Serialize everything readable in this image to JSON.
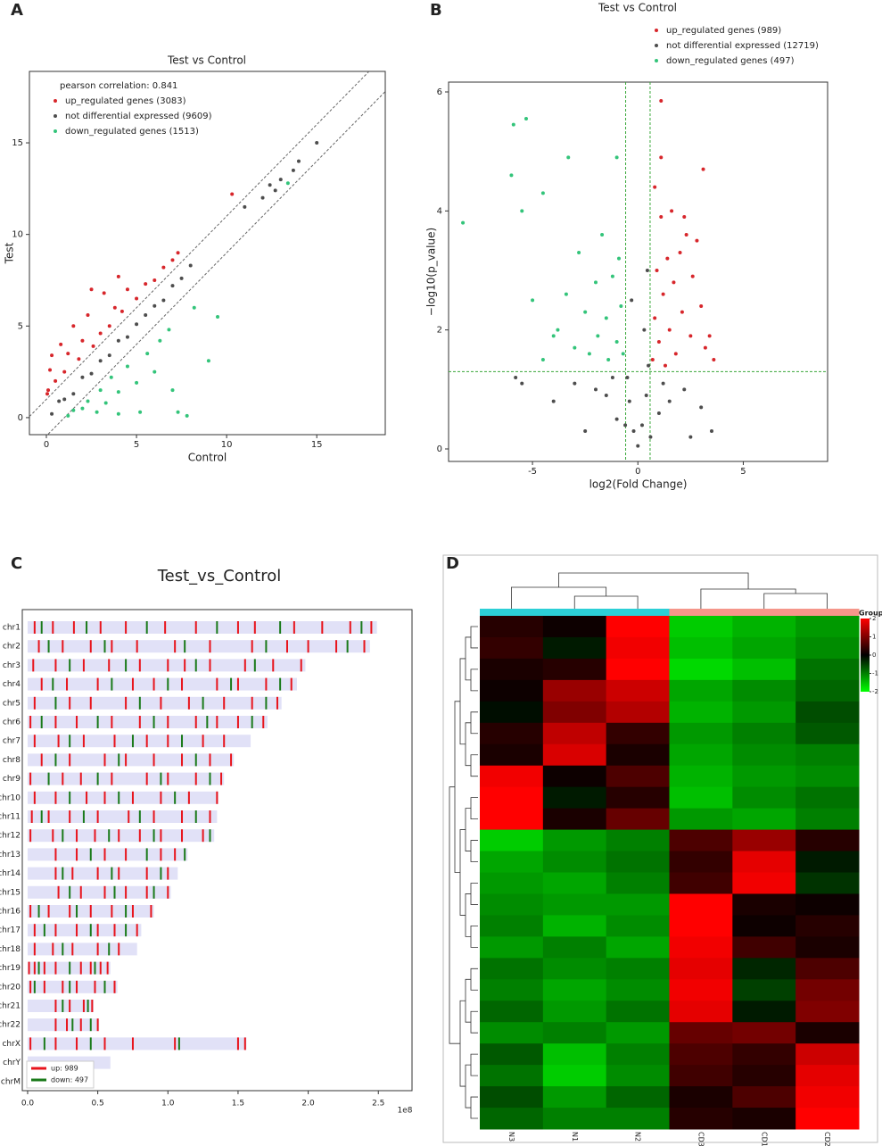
{
  "chart_data": [
    {
      "type": "scatter",
      "panel_label": "A",
      "title": "Test vs Control",
      "xlabel": "Control",
      "ylabel": "Test",
      "annotation": "pearson correlation: 0.841",
      "xlim": [
        -0.94,
        18.8
      ],
      "ylim": [
        -0.93,
        18.9
      ],
      "xticks": [
        0,
        5,
        10,
        15
      ],
      "yticks": [
        0,
        5,
        10,
        15
      ],
      "ref_intercepts": [
        1,
        -1
      ],
      "grid": false,
      "legend": "upper left",
      "series": [
        {
          "name": "up_regulated genes (3083)",
          "color": "#d7262b",
          "x": [
            0.05,
            0.1,
            0.2,
            0.3,
            0.5,
            0.8,
            1.0,
            1.2,
            1.5,
            1.8,
            2.0,
            2.3,
            2.5,
            2.6,
            3.0,
            3.2,
            3.5,
            3.8,
            4.0,
            4.2,
            4.5,
            5.0,
            5.5,
            6.0,
            6.5,
            7.0,
            7.3,
            10.3
          ],
          "values": [
            1.3,
            1.5,
            2.6,
            3.4,
            2.0,
            4.0,
            2.5,
            3.5,
            5.0,
            3.2,
            4.2,
            5.6,
            7.0,
            3.9,
            4.6,
            6.8,
            5.0,
            6.0,
            7.7,
            5.8,
            7.0,
            6.5,
            7.3,
            7.5,
            8.2,
            8.6,
            9.0,
            12.2
          ]
        },
        {
          "name": "not differential expressed (9609)",
          "color": "#4d4d4d",
          "x": [
            0.3,
            0.7,
            1,
            1.5,
            2,
            2.5,
            3,
            3.5,
            4,
            4.5,
            5,
            5.5,
            6,
            6.5,
            7,
            7.5,
            8,
            11,
            12,
            12.4,
            12.7,
            13,
            13.7,
            14,
            15
          ],
          "values": [
            0.2,
            0.9,
            1,
            1.3,
            2.2,
            2.4,
            3.1,
            3.4,
            4.2,
            4.4,
            5.1,
            5.6,
            6.1,
            6.4,
            7.2,
            7.6,
            8.3,
            11.5,
            12,
            12.7,
            12.4,
            13,
            13.5,
            14,
            15
          ]
        },
        {
          "name": "down_regulated genes (1513)",
          "color": "#33c47a",
          "x": [
            1.2,
            1.5,
            2,
            2.3,
            2.8,
            3,
            3.3,
            3.6,
            4,
            4,
            4.5,
            5,
            5.2,
            5.6,
            6,
            6.3,
            6.8,
            7,
            7.3,
            7.8,
            8.2,
            9,
            9.5,
            13.4
          ],
          "values": [
            0.1,
            0.4,
            0.5,
            0.9,
            0.3,
            1.5,
            0.8,
            2.2,
            0.2,
            1.4,
            2.8,
            1.9,
            0.3,
            3.5,
            2.5,
            4.2,
            4.8,
            1.5,
            0.3,
            0.1,
            6,
            3.1,
            5.5,
            12.8
          ]
        }
      ]
    },
    {
      "type": "scatter",
      "panel_label": "B",
      "title": "Test vs Control",
      "xlabel": "log2(Fold Change)",
      "ylabel": "−log10(p_value)",
      "xlim": [
        -8.98,
        9.0
      ],
      "ylim": [
        -0.21,
        6.165
      ],
      "xticks": [
        -5,
        0,
        5
      ],
      "yticks": [
        0,
        2,
        4,
        6
      ],
      "xthresholds": [
        -0.58,
        0.58
      ],
      "ythreshold": 1.3,
      "threshold_color": "#3aa83a",
      "grid": false,
      "legend": "top",
      "series": [
        {
          "name": "up_regulated genes (989)",
          "color": "#d7262b",
          "x": [
            0.7,
            0.8,
            0.9,
            1.0,
            1.1,
            1.2,
            1.3,
            1.4,
            1.5,
            1.6,
            1.7,
            1.8,
            2.0,
            2.1,
            2.3,
            2.5,
            2.6,
            2.8,
            3.0,
            3.2,
            3.4,
            3.6,
            0.8,
            1.1,
            1.1,
            3.1,
            2.2
          ],
          "values": [
            1.5,
            2.2,
            3.0,
            1.8,
            3.9,
            2.6,
            1.4,
            3.2,
            2.0,
            4.0,
            2.8,
            1.6,
            3.3,
            2.3,
            3.6,
            1.9,
            2.9,
            3.5,
            2.4,
            1.7,
            1.9,
            1.5,
            4.4,
            5.85,
            4.9,
            4.7,
            3.9
          ]
        },
        {
          "name": "not differential expressed (12719)",
          "color": "#4d4d4d",
          "x": [
            0,
            -0.2,
            0.2,
            -0.4,
            0.4,
            -0.5,
            0.5,
            0.3,
            0.45,
            -0.3,
            -1,
            1,
            -1.5,
            1.5,
            -2,
            2.2,
            -3,
            3,
            -4,
            3.5,
            -5.8,
            -5.5,
            -2.5,
            2.5,
            -0.6,
            0.6,
            -1.2,
            1.2
          ],
          "values": [
            0.05,
            0.3,
            0.4,
            0.8,
            0.9,
            1.2,
            1.4,
            2,
            3,
            2.5,
            0.5,
            0.6,
            0.9,
            0.8,
            1,
            1,
            1.1,
            0.7,
            0.8,
            0.3,
            1.2,
            1.1,
            0.3,
            0.2,
            0.4,
            0.2,
            1.2,
            1.1
          ]
        },
        {
          "name": "down_regulated genes (497)",
          "color": "#33c47a",
          "x": [
            -0.7,
            -0.8,
            -0.9,
            -1.0,
            -1.2,
            -1.4,
            -1.5,
            -1.7,
            -1.9,
            -2.0,
            -2.3,
            -2.5,
            -2.8,
            -3.0,
            -3.4,
            -3.8,
            -4.0,
            -4.5,
            -5.0,
            -5.5,
            -5.9,
            -5.3,
            -6.0,
            -8.3,
            -4.5,
            -3.3,
            -1.0
          ],
          "values": [
            1.6,
            2.4,
            3.2,
            1.8,
            2.9,
            1.5,
            2.2,
            3.6,
            1.9,
            2.8,
            1.6,
            2.3,
            3.3,
            1.7,
            2.6,
            2.0,
            1.9,
            1.5,
            2.5,
            4.0,
            5.45,
            5.55,
            4.6,
            3.8,
            4.3,
            4.9,
            4.9
          ]
        }
      ]
    },
    {
      "type": "chromosome",
      "panel_label": "C",
      "title": "Test_vs_Control",
      "xlabel": "1e8",
      "xlim": [
        -0.038,
        2.74
      ],
      "xticks": [
        {
          "value": 0,
          "label": "0.0"
        },
        0.5,
        {
          "value": 1,
          "label": "1.0"
        },
        1.5,
        {
          "value": 2,
          "label": "2.0"
        },
        2.5
      ],
      "bar_color": "#e1e1f7",
      "legend": [
        {
          "name": "up: 989",
          "color": "#e8141c"
        },
        {
          "name": "down: 497",
          "color": "#1a7a1a"
        }
      ],
      "chromosomes": [
        {
          "name": "chr1",
          "length": 2.49,
          "up": [
            0.05,
            0.18,
            0.33,
            0.52,
            0.7,
            0.98,
            1.2,
            1.5,
            1.62,
            1.9,
            2.1,
            2.3,
            2.45
          ],
          "down": [
            0.1,
            0.42,
            0.85,
            1.35,
            1.8,
            2.38
          ]
        },
        {
          "name": "chr2",
          "length": 2.44,
          "up": [
            0.08,
            0.25,
            0.45,
            0.6,
            0.78,
            1.05,
            1.3,
            1.6,
            1.85,
            2.0,
            2.2,
            2.4
          ],
          "down": [
            0.15,
            0.55,
            1.12,
            1.7,
            2.28
          ]
        },
        {
          "name": "chr3",
          "length": 1.98,
          "up": [
            0.04,
            0.2,
            0.4,
            0.58,
            0.8,
            1.0,
            1.12,
            1.3,
            1.55,
            1.75,
            1.95
          ],
          "down": [
            0.3,
            0.7,
            1.2,
            1.62
          ]
        },
        {
          "name": "chr4",
          "length": 1.92,
          "up": [
            0.1,
            0.28,
            0.5,
            0.75,
            0.9,
            1.1,
            1.35,
            1.5,
            1.7,
            1.88
          ],
          "down": [
            0.18,
            0.6,
            1.0,
            1.45,
            1.8
          ]
        },
        {
          "name": "chr5",
          "length": 1.81,
          "up": [
            0.05,
            0.3,
            0.45,
            0.7,
            0.95,
            1.15,
            1.4,
            1.6,
            1.78
          ],
          "down": [
            0.2,
            0.8,
            1.25,
            1.7
          ]
        },
        {
          "name": "chr6",
          "length": 1.71,
          "up": [
            0.02,
            0.2,
            0.35,
            0.6,
            0.8,
            1.0,
            1.2,
            1.35,
            1.5,
            1.68
          ],
          "down": [
            0.1,
            0.5,
            0.9,
            1.28,
            1.6
          ]
        },
        {
          "name": "chr7",
          "length": 1.59,
          "up": [
            0.05,
            0.22,
            0.4,
            0.62,
            0.85,
            1.0,
            1.25,
            1.4
          ],
          "down": [
            0.3,
            0.75,
            1.1
          ]
        },
        {
          "name": "chr8",
          "length": 1.47,
          "up": [
            0.1,
            0.3,
            0.55,
            0.7,
            0.9,
            1.1,
            1.3,
            1.45
          ],
          "down": [
            0.2,
            0.65,
            1.2
          ]
        },
        {
          "name": "chr9",
          "length": 1.4,
          "up": [
            0.02,
            0.25,
            0.38,
            0.6,
            0.85,
            1.0,
            1.2,
            1.38
          ],
          "down": [
            0.15,
            0.5,
            0.95,
            1.3
          ]
        },
        {
          "name": "chr10",
          "length": 1.36,
          "up": [
            0.05,
            0.2,
            0.42,
            0.55,
            0.75,
            0.95,
            1.15,
            1.35
          ],
          "down": [
            0.3,
            0.65,
            1.05
          ]
        },
        {
          "name": "chr11",
          "length": 1.35,
          "up": [
            0.03,
            0.15,
            0.3,
            0.5,
            0.72,
            0.9,
            1.1,
            1.3
          ],
          "down": [
            0.1,
            0.4,
            0.8,
            1.2
          ]
        },
        {
          "name": "chr12",
          "length": 1.33,
          "up": [
            0.02,
            0.18,
            0.35,
            0.48,
            0.65,
            0.8,
            0.95,
            1.1,
            1.25
          ],
          "down": [
            0.25,
            0.58,
            0.9,
            1.3
          ]
        },
        {
          "name": "chr13",
          "length": 1.14,
          "up": [
            0.2,
            0.35,
            0.55,
            0.7,
            0.95,
            1.05
          ],
          "down": [
            0.45,
            0.85,
            1.12
          ]
        },
        {
          "name": "chr14",
          "length": 1.07,
          "up": [
            0.2,
            0.32,
            0.5,
            0.65,
            0.85,
            1.0
          ],
          "down": [
            0.25,
            0.6,
            0.95
          ]
        },
        {
          "name": "chr15",
          "length": 1.02,
          "up": [
            0.22,
            0.38,
            0.55,
            0.7,
            0.85,
            1.0
          ],
          "down": [
            0.3,
            0.62,
            0.9
          ]
        },
        {
          "name": "chr16",
          "length": 0.9,
          "up": [
            0.02,
            0.15,
            0.3,
            0.45,
            0.6,
            0.75,
            0.88
          ],
          "down": [
            0.08,
            0.35,
            0.7
          ]
        },
        {
          "name": "chr17",
          "length": 0.81,
          "up": [
            0.05,
            0.2,
            0.35,
            0.5,
            0.62,
            0.78
          ],
          "down": [
            0.12,
            0.45,
            0.7
          ]
        },
        {
          "name": "chr18",
          "length": 0.78,
          "up": [
            0.05,
            0.18,
            0.32,
            0.5,
            0.65
          ],
          "down": [
            0.25,
            0.58
          ]
        },
        {
          "name": "chr19",
          "length": 0.59,
          "up": [
            0.01,
            0.05,
            0.12,
            0.2,
            0.38,
            0.45,
            0.52,
            0.57
          ],
          "down": [
            0.08,
            0.3,
            0.48
          ]
        },
        {
          "name": "chr20",
          "length": 0.64,
          "up": [
            0.02,
            0.12,
            0.25,
            0.35,
            0.48,
            0.62
          ],
          "down": [
            0.05,
            0.3,
            0.55
          ]
        },
        {
          "name": "chr21",
          "length": 0.47,
          "up": [
            0.2,
            0.3,
            0.4,
            0.46
          ],
          "down": [
            0.25,
            0.43
          ]
        },
        {
          "name": "chr22",
          "length": 0.51,
          "up": [
            0.2,
            0.28,
            0.38,
            0.5
          ],
          "down": [
            0.32,
            0.45
          ]
        },
        {
          "name": "chrX",
          "length": 1.56,
          "up": [
            0.02,
            0.2,
            0.35,
            0.55,
            0.75,
            1.05,
            1.5,
            1.55
          ],
          "down": [
            0.12,
            0.45,
            1.08
          ]
        },
        {
          "name": "chrY",
          "length": 0.59,
          "up": [],
          "down": []
        },
        {
          "name": "chrM",
          "length": 0,
          "up": [],
          "down": []
        }
      ]
    },
    {
      "type": "heatmap",
      "panel_label": "D",
      "legend_title": "Group",
      "columns": [
        "N3",
        "N1",
        "N2",
        "CD3",
        "CD1",
        "CD2"
      ],
      "group_colors": [
        "#2ccfd6",
        "#2ccfd6",
        "#2ccfd6",
        "#f5968a",
        "#f5968a",
        "#f5968a"
      ],
      "colorscale": [
        "#00ff00",
        "#000000",
        "#ff0000"
      ],
      "clim": [
        -2,
        2
      ],
      "cticks": [
        2,
        1,
        0,
        -1,
        -2
      ],
      "values": [
        [
          0.3,
          0.1,
          2.0,
          -1.6,
          -1.4,
          -1.2
        ],
        [
          0.4,
          -0.2,
          1.9,
          -1.5,
          -1.3,
          -1.1
        ],
        [
          0.2,
          0.3,
          2.0,
          -1.7,
          -1.5,
          -0.9
        ],
        [
          0.1,
          1.2,
          1.6,
          -1.3,
          -1.1,
          -0.8
        ],
        [
          -0.1,
          1.0,
          1.4,
          -1.4,
          -1.2,
          -0.6
        ],
        [
          0.3,
          1.5,
          0.4,
          -1.2,
          -1.0,
          -0.7
        ],
        [
          0.2,
          1.7,
          0.2,
          -1.3,
          -1.1,
          -1.0
        ],
        [
          1.9,
          0.1,
          0.6,
          -1.4,
          -1.2,
          -1.1
        ],
        [
          2.0,
          -0.2,
          0.3,
          -1.5,
          -1.1,
          -0.9
        ],
        [
          2.0,
          0.2,
          0.8,
          -1.2,
          -1.3,
          -1.0
        ],
        [
          -1.6,
          -1.2,
          -1.0,
          0.6,
          1.2,
          0.3
        ],
        [
          -1.3,
          -1.1,
          -0.9,
          0.4,
          1.8,
          -0.2
        ],
        [
          -1.2,
          -1.3,
          -1.0,
          0.5,
          1.9,
          -0.4
        ],
        [
          -1.1,
          -1.2,
          -1.2,
          2.0,
          0.2,
          0.1
        ],
        [
          -1.0,
          -1.4,
          -1.1,
          2.0,
          0.1,
          0.3
        ],
        [
          -1.2,
          -1.0,
          -1.3,
          1.9,
          0.5,
          0.2
        ],
        [
          -0.9,
          -1.1,
          -1.0,
          1.8,
          -0.3,
          0.6
        ],
        [
          -1.0,
          -1.3,
          -1.1,
          1.9,
          -0.5,
          0.9
        ],
        [
          -0.8,
          -1.2,
          -0.9,
          1.8,
          -0.2,
          1.0
        ],
        [
          -1.1,
          -1.0,
          -1.2,
          0.8,
          0.9,
          0.2
        ],
        [
          -0.7,
          -1.5,
          -1.0,
          0.6,
          0.4,
          1.6
        ],
        [
          -0.9,
          -1.6,
          -1.1,
          0.5,
          0.3,
          1.8
        ],
        [
          -0.6,
          -1.2,
          -0.8,
          0.2,
          0.6,
          1.9
        ],
        [
          -0.8,
          -1.0,
          -1.0,
          0.3,
          0.2,
          2.0
        ]
      ]
    }
  ]
}
